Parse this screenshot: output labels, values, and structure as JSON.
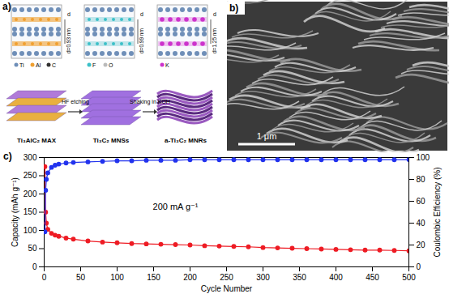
{
  "panel_a": {
    "label": "a)",
    "spacing_symbol": "d",
    "structures": [
      {
        "name": "Ti₃AlC₂ MAX",
        "spacing": "d=0.93 nm",
        "atoms": [
          "Ti",
          "Al",
          "C"
        ]
      },
      {
        "name": "Ti₃C₂ MNSs",
        "spacing": "d=0.99 nm",
        "atoms": [
          "F",
          "O"
        ]
      },
      {
        "name": "a-Ti₃C₂ MNRs",
        "spacing": "d=1.25 nm",
        "atoms": [
          "K"
        ]
      }
    ],
    "steps": [
      "HF etching",
      "Shaking in KOH"
    ]
  },
  "panel_b": {
    "label": "b)",
    "scale_bar": "1 μm"
  },
  "chart_data": {
    "type": "line",
    "title": "c)",
    "x": [
      1,
      2,
      3,
      5,
      10,
      15,
      20,
      30,
      40,
      60,
      80,
      100,
      120,
      140,
      160,
      180,
      200,
      220,
      240,
      260,
      280,
      300,
      320,
      340,
      360,
      380,
      400,
      420,
      440,
      460,
      480,
      500
    ],
    "xlim": [
      0,
      500
    ],
    "xticks": [
      0,
      50,
      100,
      150,
      200,
      250,
      300,
      350,
      400,
      450,
      500
    ],
    "ylim": [
      0,
      300
    ],
    "yticks": [
      0,
      50,
      100,
      150,
      200,
      250,
      300
    ],
    "y2lim": [
      0,
      100
    ],
    "y2ticks": [
      0,
      20,
      40,
      60,
      80,
      100
    ],
    "xlabel": "Cycle Number",
    "ylabel": "Capacity (mAh g⁻¹)",
    "y2label": "Coulombic Efficiency (%)",
    "grid": false,
    "annotations": [
      {
        "text": "200 mA g⁻¹",
        "x": 180,
        "y": 165
      }
    ],
    "series": [
      {
        "color": "#ee1c24",
        "marker": "circle",
        "line_style": "solid",
        "values": [
          275,
          150,
          120,
          103,
          92,
          87,
          84,
          79,
          76,
          71,
          68,
          66,
          64,
          63,
          62,
          61,
          60,
          58,
          57,
          56,
          55,
          53,
          52,
          51,
          50,
          49,
          48,
          47,
          46,
          46,
          45,
          44
        ]
      },
      {
        "axis": "y2",
        "color": "#2233ee",
        "marker": "circle",
        "line_style": "solid",
        "values": [
          32,
          70,
          80,
          86,
          91,
          93,
          94,
          95,
          95.5,
          96,
          96.5,
          97,
          97,
          97.5,
          97.5,
          97.5,
          98,
          98,
          98,
          98,
          98,
          98,
          98,
          98,
          98,
          98,
          98,
          98,
          98,
          98,
          98,
          98
        ]
      }
    ]
  }
}
